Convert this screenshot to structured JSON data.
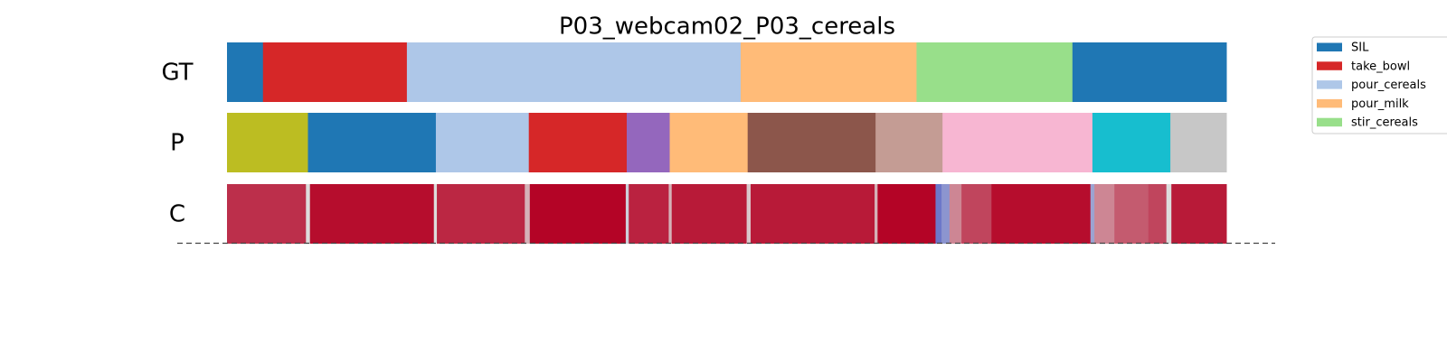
{
  "chart_data": {
    "type": "segmentation",
    "title": "P03_webcam02_P03_cereals",
    "xlim": [
      0,
      100
    ],
    "rows": [
      {
        "label": "GT",
        "kind": "segments",
        "bounds": [
          0,
          3.6,
          18.0,
          51.4,
          69.0,
          84.6,
          100
        ],
        "colors": [
          "#1f77b4",
          "#d62728",
          "#aec7e8",
          "#ffbb78",
          "#98df8a",
          "#1f77b4"
        ]
      },
      {
        "label": "P",
        "kind": "segments",
        "bounds": [
          0,
          8.1,
          20.9,
          30.2,
          40.0,
          44.3,
          52.1,
          64.9,
          71.6,
          86.6,
          94.4,
          100
        ],
        "colors": [
          "#bcbd22",
          "#1f77b4",
          "#aec7e8",
          "#d62728",
          "#9467bd",
          "#ffbb78",
          "#8c564b",
          "#c49c94",
          "#f7b6d2",
          "#17becf",
          "#c7c7c7"
        ]
      },
      {
        "label": "C",
        "kind": "confidence",
        "bounds": [
          0,
          7.9,
          8.3,
          20.7,
          21.0,
          29.8,
          30.3,
          39.9,
          40.2,
          44.2,
          44.5,
          52.0,
          52.4,
          64.8,
          65.1,
          70.9,
          71.5,
          72.3,
          73.5,
          76.5,
          86.4,
          86.8,
          88.8,
          92.2,
          94.0,
          94.5,
          100
        ],
        "values": [
          0.9,
          0.5,
          0.98,
          0.5,
          0.92,
          0.6,
          1.0,
          0.45,
          0.93,
          0.6,
          0.95,
          0.55,
          0.95,
          0.6,
          1.0,
          0.15,
          0.25,
          0.7,
          0.85,
          0.98,
          0.3,
          0.7,
          0.8,
          0.85,
          0.5,
          0.95
        ]
      }
    ],
    "legend": [
      {
        "name": "SIL",
        "color": "#1f77b4"
      },
      {
        "name": "take_bowl",
        "color": "#d62728"
      },
      {
        "name": "pour_cereals",
        "color": "#aec7e8"
      },
      {
        "name": "pour_milk",
        "color": "#ffbb78"
      },
      {
        "name": "stir_cereals",
        "color": "#98df8a"
      }
    ]
  }
}
